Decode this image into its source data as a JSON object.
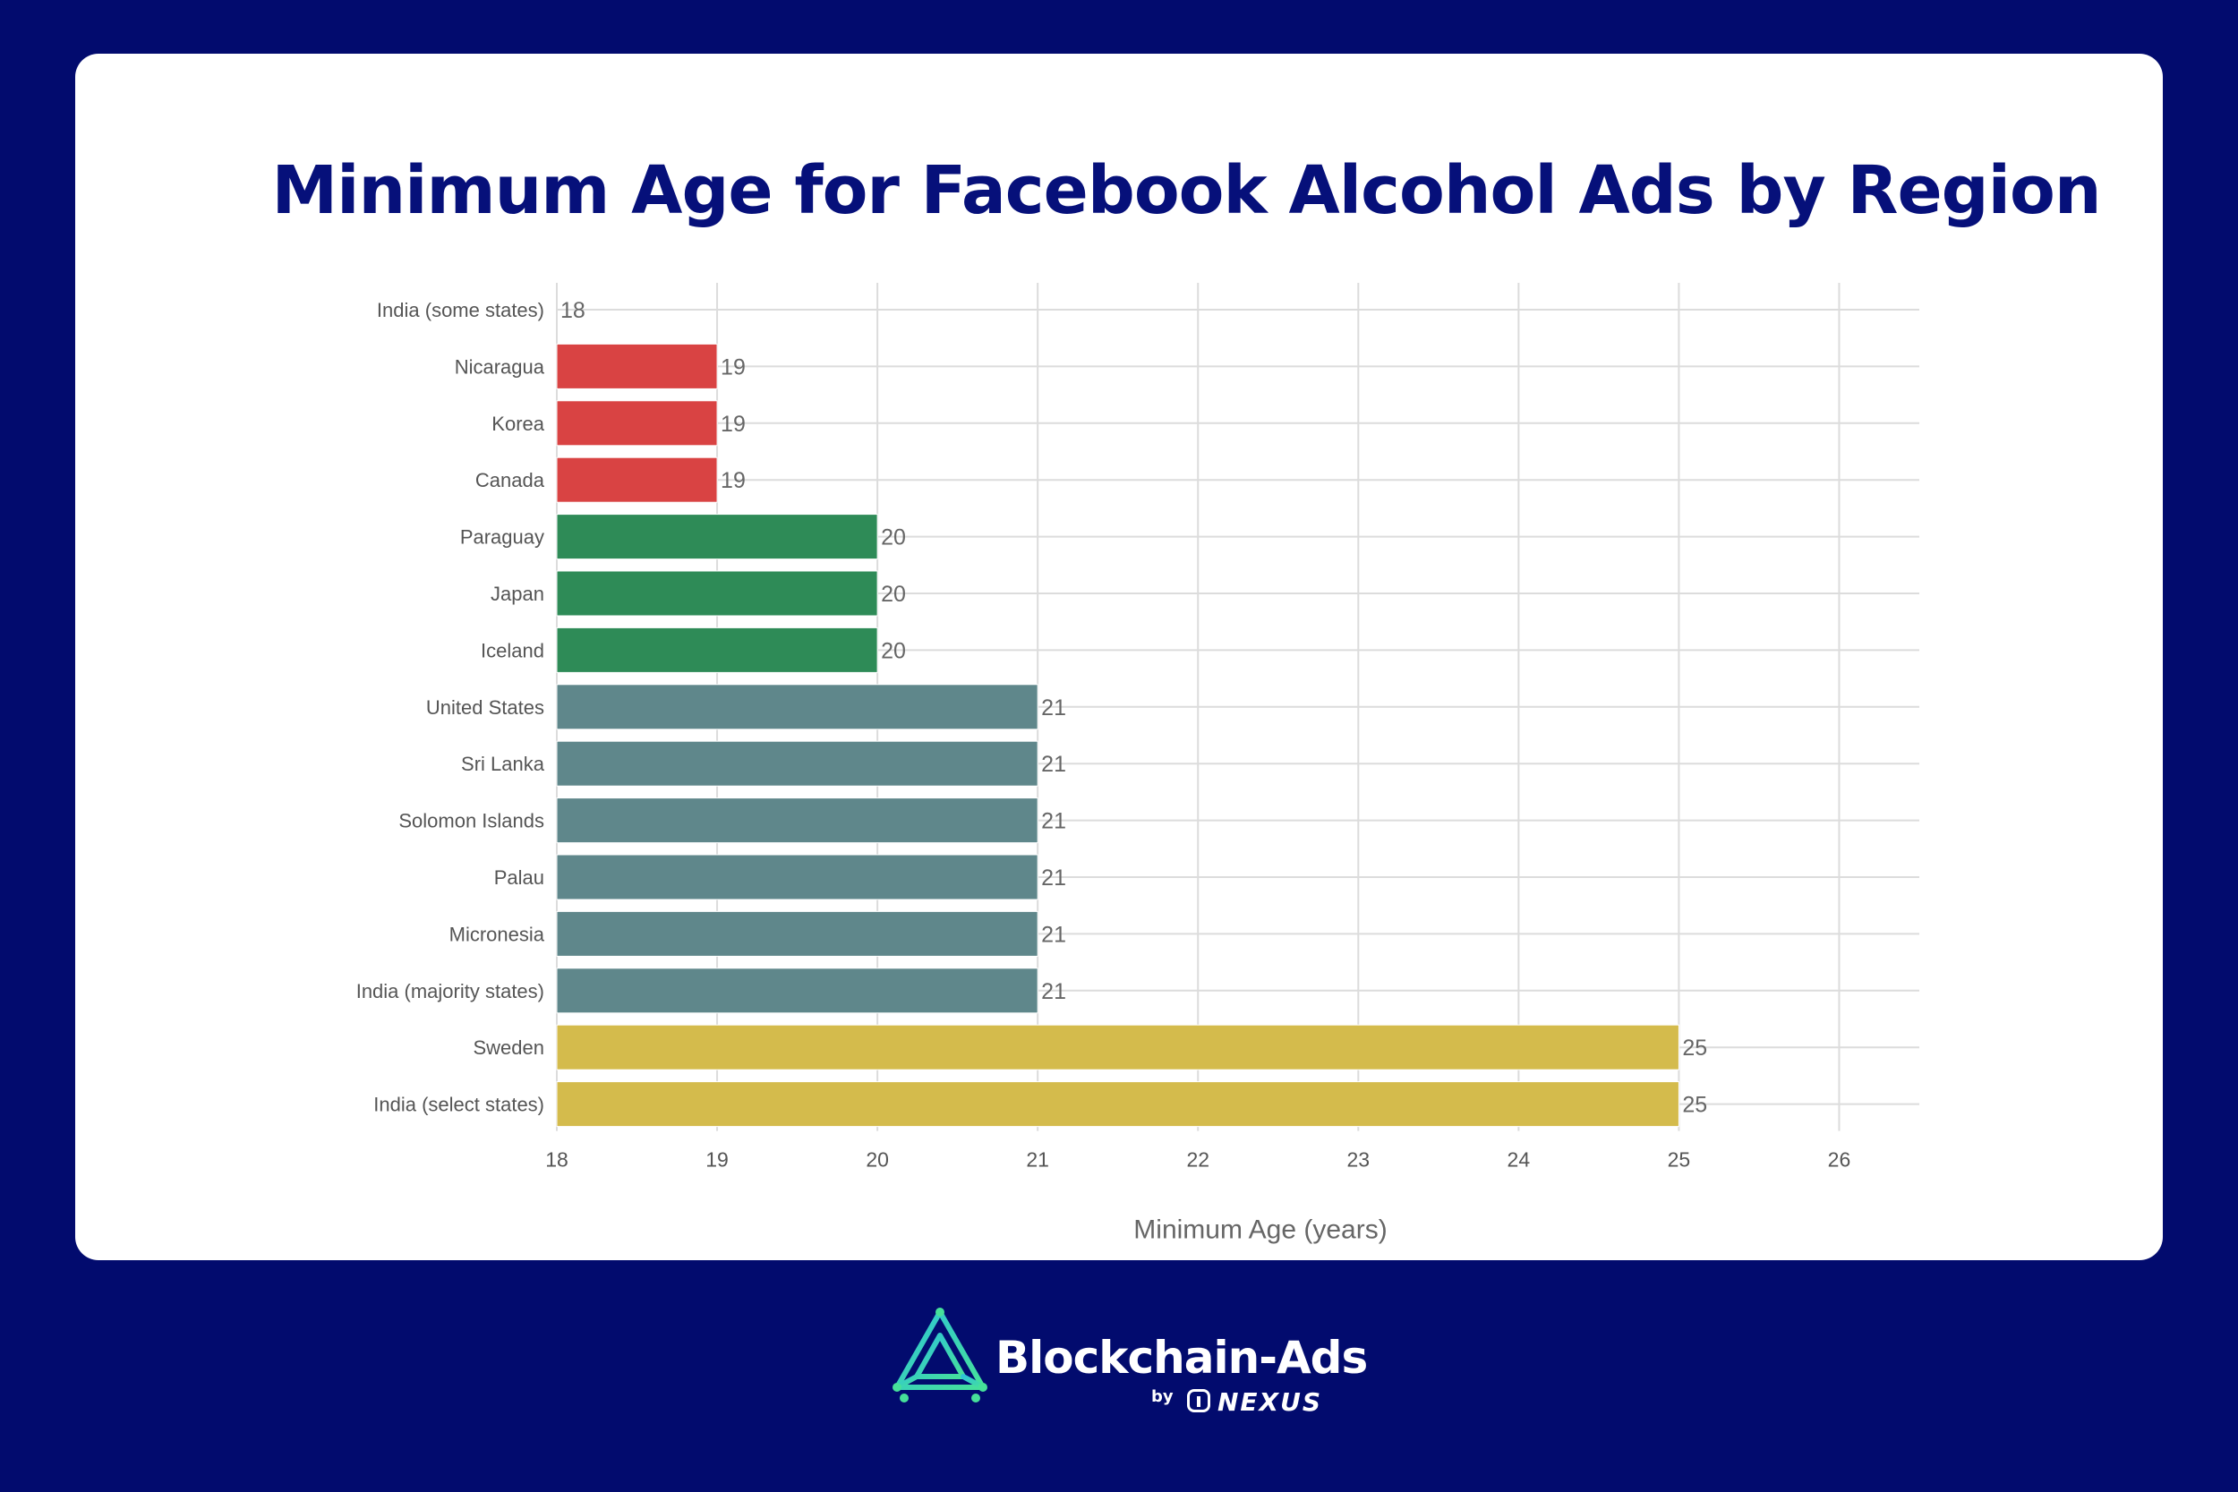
{
  "chart_data": {
    "type": "bar",
    "orientation": "horizontal",
    "title": "Minimum Age for Facebook Alcohol Ads by Region",
    "xlabel": "Minimum Age (years)",
    "ylabel": "",
    "xlim": [
      18,
      26.5
    ],
    "ticks": [
      "18",
      "19",
      "20",
      "21",
      "22",
      "23",
      "24",
      "25",
      "26"
    ],
    "grid": true,
    "categories": [
      "India (some states)",
      "Nicaragua",
      "Korea",
      "Canada",
      "Paraguay",
      "Japan",
      "Iceland",
      "United States",
      "Sri Lanka",
      "Solomon Islands",
      "Palau",
      "Micronesia",
      "India (majority states)",
      "Sweden",
      "India (select states)"
    ],
    "values": [
      18,
      19,
      19,
      19,
      20,
      20,
      20,
      21,
      21,
      21,
      21,
      21,
      21,
      25,
      25
    ],
    "value_labels": [
      "18",
      "19",
      "19",
      "19",
      "20",
      "20",
      "20",
      "21",
      "21",
      "21",
      "21",
      "21",
      "21",
      "25",
      "25"
    ],
    "color_by_value": {
      "18": "#d94343",
      "19": "#d94343",
      "20": "#2e8b57",
      "21": "#5f878b",
      "25": "#d4bb4c"
    }
  },
  "brand": {
    "name": "Blockchain-Ads",
    "by": "by",
    "partner": "NEXUS"
  },
  "colors": {
    "background": "#020b6e",
    "card": "#ffffff",
    "title": "#06107a",
    "logo_gradient_start": "#2ec4d6",
    "logo_gradient_end": "#46e09a"
  }
}
